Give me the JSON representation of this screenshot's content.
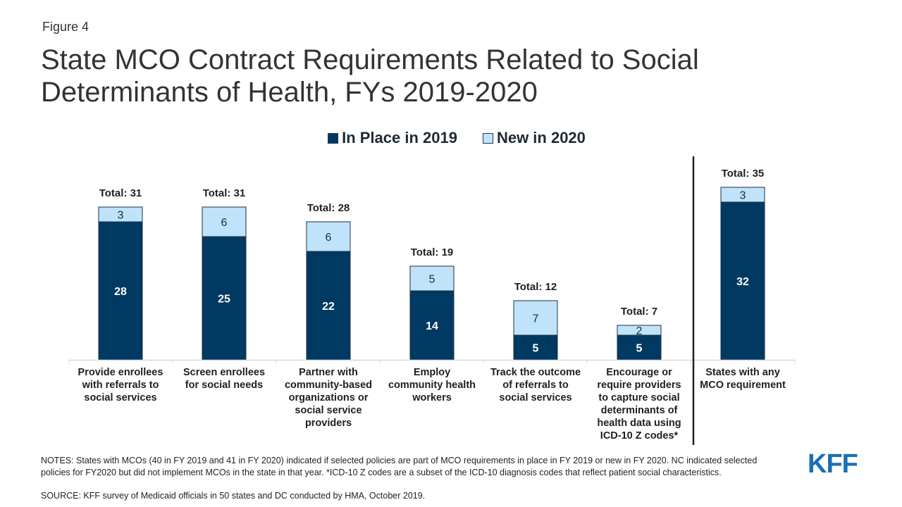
{
  "figure_label": "Figure 4",
  "title_line1": "State MCO Contract Requirements Related to Social",
  "title_line2": "Determinants of Health, FYs 2019-2020",
  "logo_text": "KFF",
  "notes_text": "NOTES: States with MCOs (40 in FY 2019 and 41 in FY 2020) indicated if selected policies are part of MCO requirements in place in FY 2019 or new in FY 2020. NC indicated selected policies for FY2020 but did not implement MCOs in the state in that year. *ICD-10 Z codes are a subset of the ICD-10 diagnosis codes that reflect patient social characteristics.",
  "source_text": "SOURCE: KFF survey of Medicaid officials in 50 states and DC conducted by HMA, October 2019.",
  "colors": {
    "in_place": "#003a63",
    "new": "#bfe3fb",
    "text_dark": "#1f1f1f"
  },
  "chart_data": {
    "type": "bar",
    "stacked": true,
    "categories": [
      "Provide enrollees with referrals to social services",
      "Screen enrollees for social needs",
      "Partner with community-based organizations or social service providers",
      "Employ community health workers",
      "Track the outcome of referrals to social services",
      "Encourage or require providers to capture social determinants of health data using ICD-10 Z codes*",
      "States with any MCO requirement"
    ],
    "category_lines": [
      [
        "Provide enrollees",
        "with referrals to",
        "social services"
      ],
      [
        "Screen enrollees",
        "for social needs"
      ],
      [
        "Partner with",
        "community-based",
        "organizations or",
        "social service",
        "providers"
      ],
      [
        "Employ",
        "community health",
        "workers"
      ],
      [
        "Track the outcome",
        "of referrals to",
        "social services"
      ],
      [
        "Encourage or",
        "require providers",
        "to capture social",
        "determinants of",
        "health data using",
        "ICD-10 Z codes*"
      ],
      [
        "States with any",
        "MCO requirement"
      ]
    ],
    "series": [
      {
        "name": "In Place in 2019",
        "values": [
          28,
          25,
          22,
          14,
          5,
          5,
          32
        ]
      },
      {
        "name": "New in 2020",
        "values": [
          3,
          6,
          6,
          5,
          7,
          2,
          3
        ]
      }
    ],
    "totals": [
      "Total: 31",
      "Total: 31",
      "Total: 28",
      "Total: 19",
      "Total: 12",
      "Total: 7",
      "Total: 35"
    ],
    "legend_position": "top-center",
    "grid": false,
    "ylim": [
      0,
      36
    ]
  }
}
